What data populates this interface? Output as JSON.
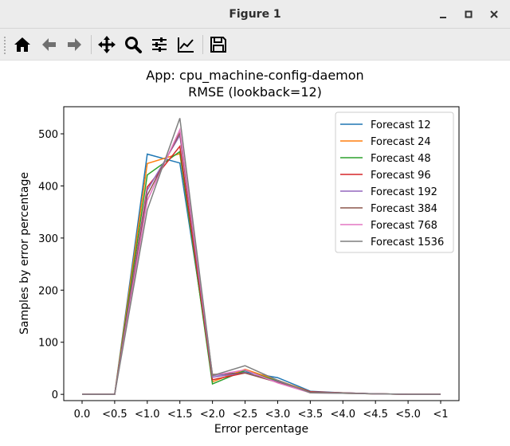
{
  "window": {
    "title": "Figure 1",
    "minimize_icon": "minimize-icon",
    "maximize_icon": "maximize-icon",
    "close_icon": "close-icon"
  },
  "toolbar": {
    "tools": [
      {
        "name": "home-button",
        "icon": "home-icon"
      },
      {
        "name": "back-button",
        "icon": "arrow-left-icon"
      },
      {
        "name": "forward-button",
        "icon": "arrow-right-icon"
      },
      {
        "name": "pan-button",
        "icon": "move-icon"
      },
      {
        "name": "zoom-button",
        "icon": "magnifier-icon"
      },
      {
        "name": "configure-subplots-button",
        "icon": "sliders-icon"
      },
      {
        "name": "edit-axis-button",
        "icon": "line-chart-icon"
      },
      {
        "name": "save-button",
        "icon": "floppy-disk-icon"
      }
    ]
  },
  "chart_data": {
    "type": "line",
    "title": "App: cpu_machine-config-daemon",
    "subtitle": "RMSE (lookback=12)",
    "xlabel": "Error percentage",
    "ylabel": "Samples by error percentage",
    "categories": [
      "0.0",
      "<0.5",
      "<1.0",
      "<1.5",
      "<2.0",
      "<2.5",
      "<3.0",
      "<3.5",
      "<4.0",
      "<4.5",
      "<5.0",
      "<1"
    ],
    "ylim": [
      -12,
      552
    ],
    "yticks": [
      0,
      100,
      200,
      300,
      400,
      500
    ],
    "grid": false,
    "legend_position": "top-right",
    "series": [
      {
        "name": "Forecast 12",
        "color": "#1f77b4",
        "values": [
          0,
          0,
          461,
          444,
          36,
          43,
          32,
          6,
          3,
          1,
          0,
          0
        ]
      },
      {
        "name": "Forecast 24",
        "color": "#ff7f0e",
        "values": [
          0,
          0,
          443,
          462,
          24,
          48,
          27,
          5,
          2,
          1,
          0,
          0
        ]
      },
      {
        "name": "Forecast 48",
        "color": "#2ca02c",
        "values": [
          0,
          0,
          421,
          466,
          20,
          46,
          25,
          4,
          2,
          1,
          0,
          0
        ]
      },
      {
        "name": "Forecast 96",
        "color": "#d62728",
        "values": [
          0,
          0,
          398,
          476,
          28,
          41,
          24,
          5,
          3,
          1,
          0,
          0
        ]
      },
      {
        "name": "Forecast 192",
        "color": "#9467bd",
        "values": [
          0,
          0,
          392,
          497,
          33,
          42,
          24,
          4,
          3,
          1,
          0,
          0
        ]
      },
      {
        "name": "Forecast 384",
        "color": "#8c564b",
        "values": [
          0,
          0,
          382,
          502,
          38,
          41,
          23,
          4,
          3,
          1,
          0,
          0
        ]
      },
      {
        "name": "Forecast 768",
        "color": "#e377c2",
        "values": [
          0,
          0,
          372,
          508,
          36,
          47,
          22,
          3,
          2,
          1,
          0,
          0
        ]
      },
      {
        "name": "Forecast 1536",
        "color": "#7f7f7f",
        "values": [
          0,
          0,
          354,
          530,
          36,
          55,
          27,
          3,
          2,
          1,
          0,
          0
        ]
      }
    ]
  }
}
